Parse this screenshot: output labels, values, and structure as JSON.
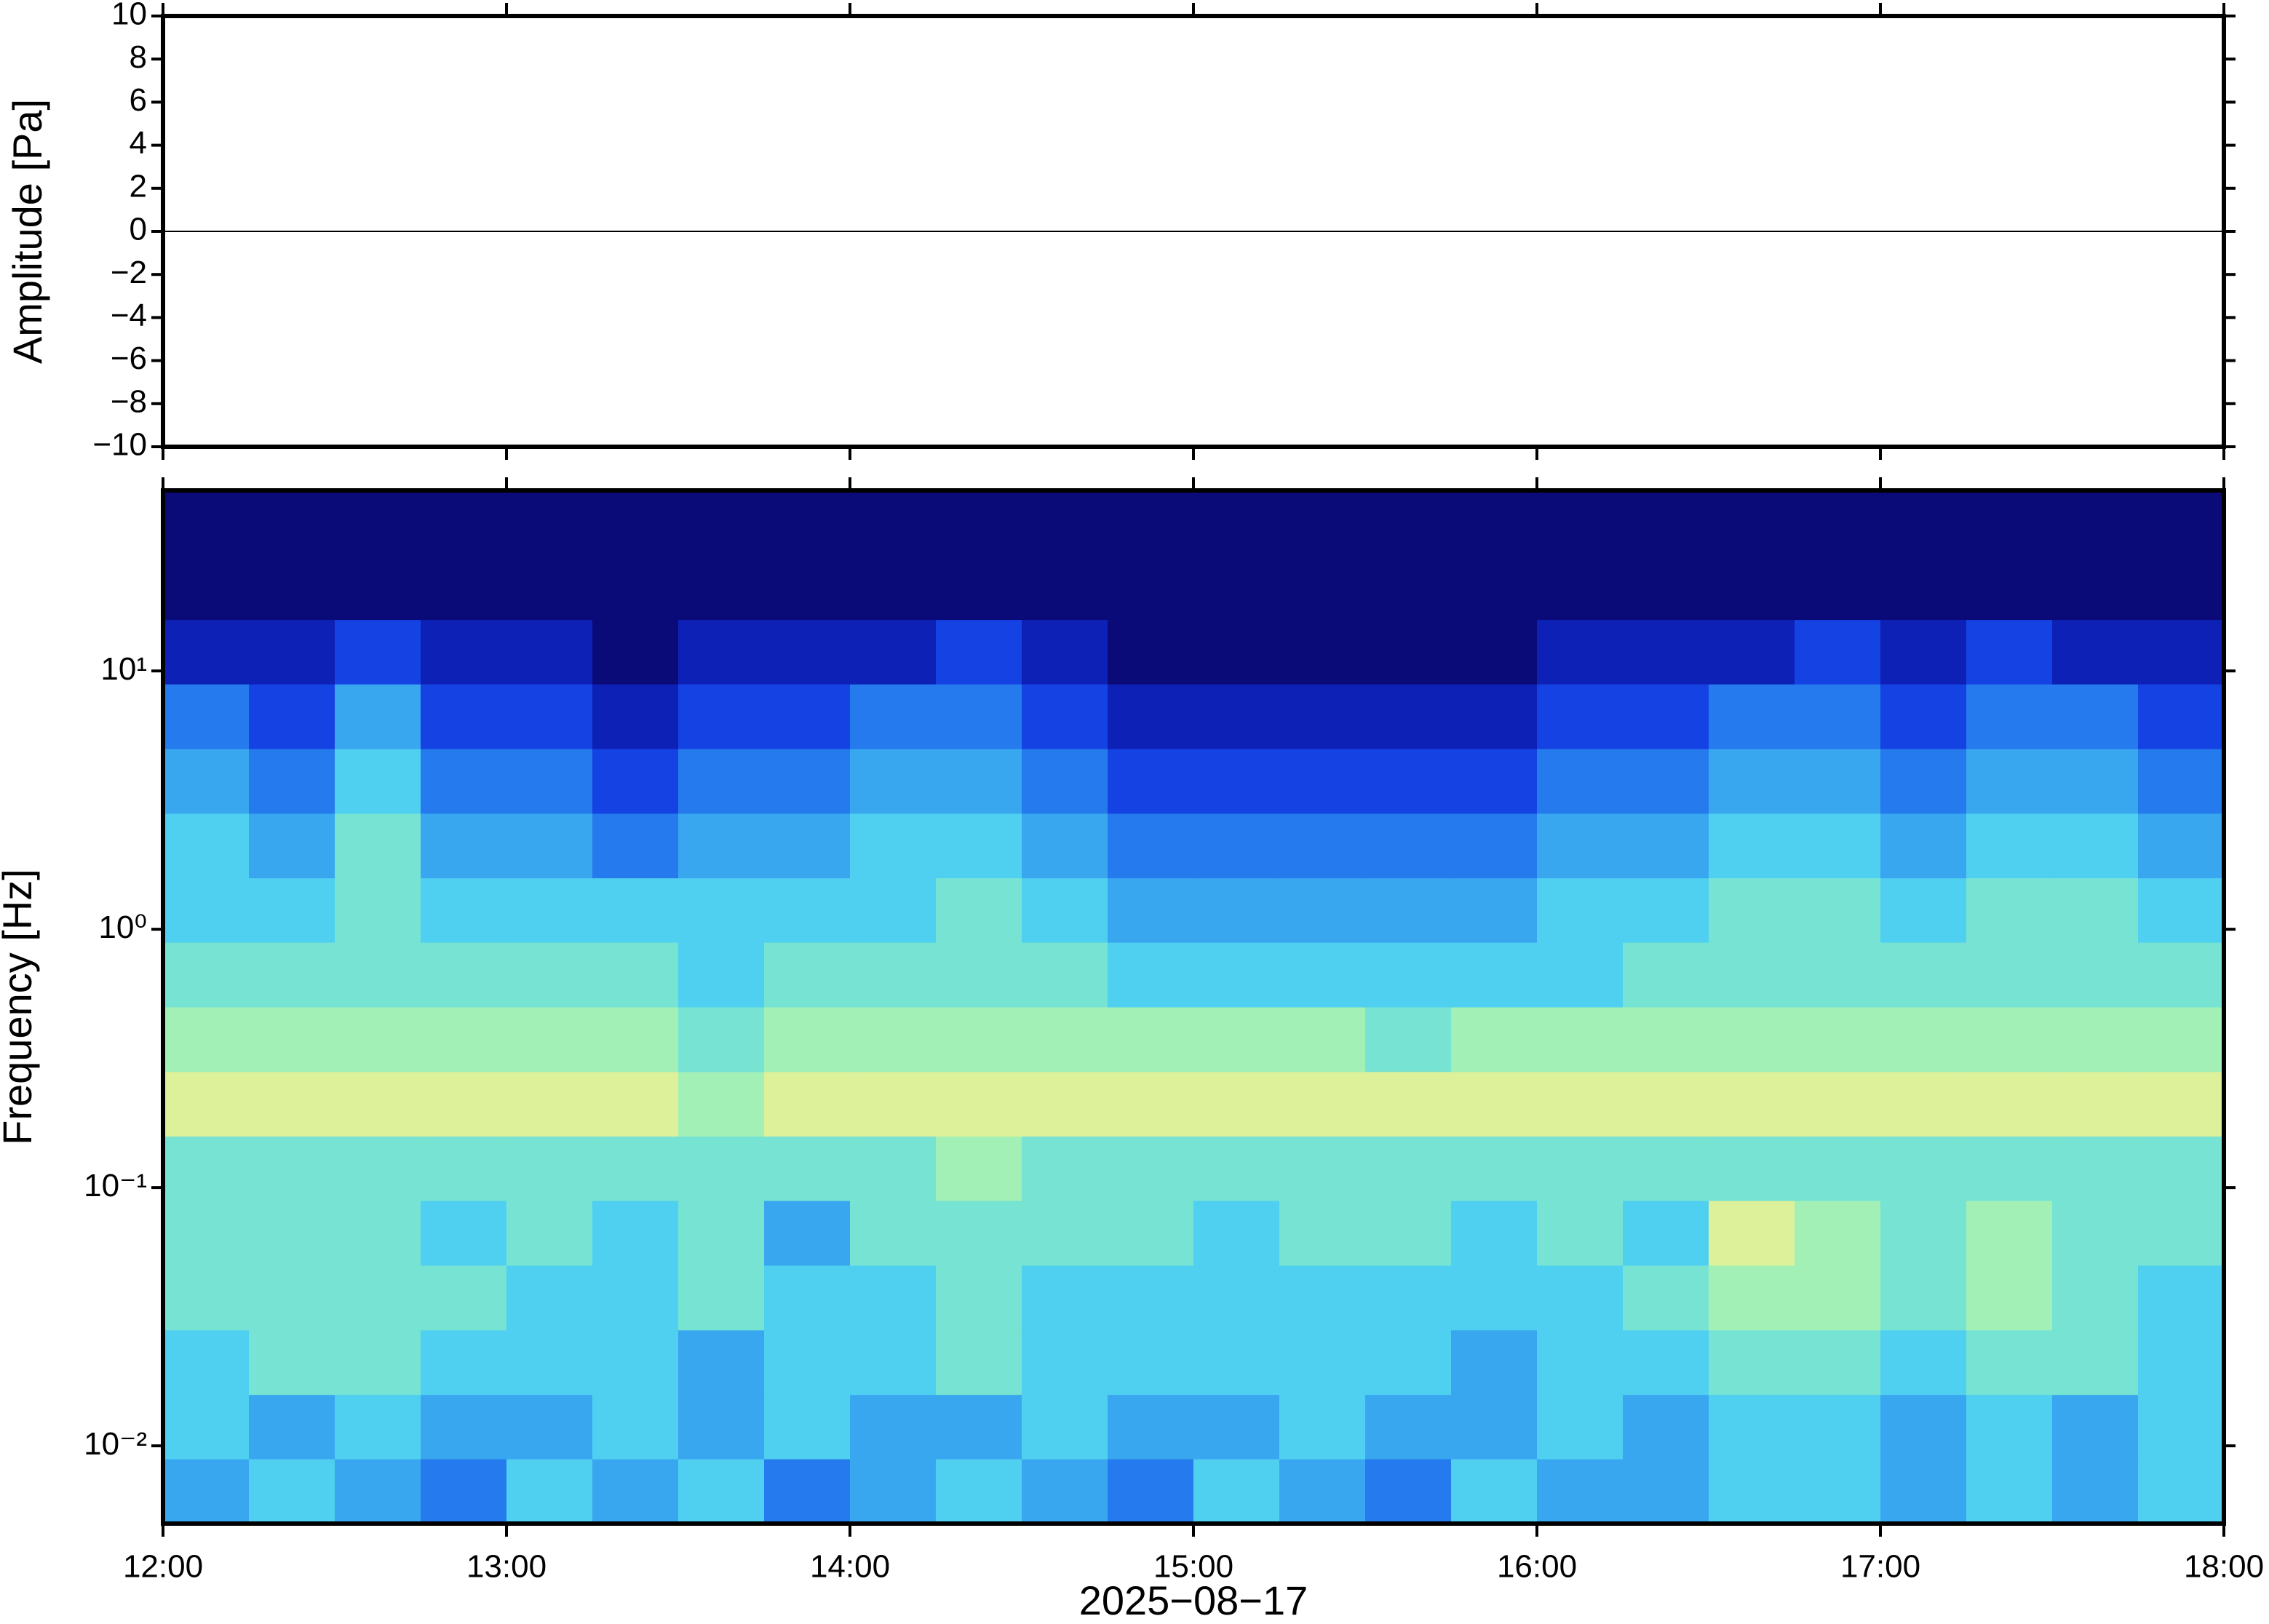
{
  "chart_data": [
    {
      "type": "line",
      "ylabel": "Amplitude [Pa]",
      "xlim": [
        "12:00",
        "18:00"
      ],
      "ylim": [
        -10,
        10
      ],
      "yticks": [
        {
          "value": -10,
          "label": "−10"
        },
        {
          "value": -8,
          "label": "−8"
        },
        {
          "value": -6,
          "label": "−6"
        },
        {
          "value": -4,
          "label": "−4"
        },
        {
          "value": -2,
          "label": "−2"
        },
        0,
        2,
        4,
        6,
        8,
        10
      ],
      "x": [
        "12:00",
        "13:00",
        "14:00",
        "15:00",
        "16:00",
        "17:00",
        "18:00"
      ],
      "series": [
        {
          "color": "#000000",
          "values": [
            0,
            0,
            0,
            0,
            0,
            0,
            0
          ]
        }
      ]
    },
    {
      "type": "heatmap",
      "ylabel": "Frequency [Hz]",
      "xlabel": "2025−08−17",
      "xlim": [
        "12:00",
        "18:00"
      ],
      "xticks": [
        "12:00",
        "13:00",
        "14:00",
        "15:00",
        "16:00",
        "17:00",
        "18:00"
      ],
      "log_y": true,
      "ylim": [
        0.005,
        50
      ],
      "yticks": [
        {
          "value": 0.01,
          "label": "10⁻²"
        },
        {
          "value": 0.1,
          "label": "10⁻¹"
        },
        {
          "value": 1,
          "label": "10⁰"
        },
        {
          "value": 10,
          "label": "10¹"
        }
      ],
      "x_edges": [
        "12:00",
        "12:15",
        "12:30",
        "12:45",
        "13:00",
        "13:15",
        "13:30",
        "13:45",
        "14:00",
        "14:15",
        "14:30",
        "14:45",
        "15:00",
        "15:15",
        "15:30",
        "15:45",
        "16:00",
        "16:15",
        "16:30",
        "16:45",
        "17:00",
        "17:15",
        "17:30",
        "17:45",
        "18:00"
      ],
      "y_edges": [
        0.005,
        0.0089,
        0.0158,
        0.0281,
        0.05,
        0.089,
        0.158,
        0.281,
        0.5,
        0.89,
        1.58,
        2.81,
        5,
        8.9,
        15.8,
        28.1,
        50
      ],
      "zlim": [
        0,
        10
      ],
      "colormap": [
        "#0a0a78",
        "#1030e0",
        "#2a8cf0",
        "#50d0f0",
        "#90f0c0",
        "#f0f090",
        "#f8c080"
      ],
      "z": [
        [
          4,
          5,
          4,
          3,
          5,
          4,
          5,
          3,
          4,
          5,
          4,
          3,
          5,
          4,
          3,
          5,
          4,
          4,
          5,
          5,
          4,
          5,
          4,
          5
        ],
        [
          5,
          4,
          5,
          4,
          4,
          5,
          4,
          5,
          4,
          4,
          5,
          4,
          4,
          5,
          4,
          4,
          5,
          4,
          5,
          5,
          4,
          5,
          4,
          5
        ],
        [
          5,
          6,
          6,
          5,
          5,
          5,
          4,
          5,
          5,
          6,
          5,
          5,
          5,
          5,
          5,
          4,
          5,
          5,
          6,
          6,
          5,
          6,
          6,
          5
        ],
        [
          6,
          6,
          6,
          6,
          5,
          5,
          6,
          5,
          5,
          6,
          5,
          5,
          5,
          5,
          5,
          5,
          5,
          6,
          7,
          7,
          6,
          7,
          6,
          5
        ],
        [
          6,
          6,
          6,
          5,
          6,
          5,
          6,
          4,
          6,
          6,
          6,
          6,
          5,
          6,
          6,
          5,
          6,
          5,
          8,
          7,
          6,
          7,
          6,
          6
        ],
        [
          6,
          6,
          6,
          6,
          6,
          6,
          6,
          6,
          6,
          7,
          6,
          6,
          6,
          6,
          6,
          6,
          6,
          6,
          6,
          6,
          6,
          6,
          6,
          6
        ],
        [
          8,
          8,
          8,
          8,
          8,
          8,
          7,
          8,
          8,
          8,
          8,
          8,
          8,
          8,
          8,
          8,
          8,
          8,
          8,
          8,
          8,
          8,
          8,
          8
        ],
        [
          7,
          7,
          7,
          7,
          7,
          7,
          6,
          7,
          7,
          7,
          7,
          7,
          7,
          7,
          6,
          7,
          7,
          7,
          7,
          7,
          7,
          7,
          7,
          7
        ],
        [
          6,
          6,
          6,
          6,
          6,
          6,
          5,
          6,
          6,
          6,
          6,
          5,
          5,
          5,
          5,
          5,
          5,
          6,
          6,
          6,
          6,
          6,
          6,
          6
        ],
        [
          5,
          5,
          6,
          5,
          5,
          5,
          5,
          5,
          5,
          6,
          5,
          4,
          4,
          4,
          4,
          4,
          5,
          5,
          6,
          6,
          5,
          6,
          6,
          5
        ],
        [
          5,
          4,
          6,
          4,
          4,
          3,
          4,
          4,
          5,
          5,
          4,
          3,
          3,
          3,
          3,
          3,
          4,
          4,
          5,
          5,
          4,
          5,
          5,
          4
        ],
        [
          4,
          3,
          5,
          3,
          3,
          2,
          3,
          3,
          4,
          4,
          3,
          2,
          2,
          2,
          2,
          2,
          3,
          3,
          4,
          4,
          3,
          4,
          4,
          3
        ],
        [
          3,
          2,
          4,
          2,
          2,
          1,
          2,
          2,
          3,
          3,
          2,
          1,
          1,
          1,
          1,
          1,
          2,
          2,
          3,
          3,
          2,
          3,
          3,
          2
        ],
        [
          1,
          1,
          2,
          1,
          1,
          0,
          1,
          1,
          1,
          2,
          1,
          0,
          0,
          0,
          0,
          0,
          1,
          1,
          1,
          2,
          1,
          2,
          1,
          1
        ],
        [
          0,
          0,
          0,
          0,
          0,
          0,
          0,
          0,
          0,
          0,
          0,
          0,
          0,
          0,
          0,
          0,
          0,
          0,
          0,
          0,
          0,
          0,
          0,
          0
        ],
        [
          0,
          0,
          0,
          0,
          0,
          0,
          0,
          0,
          0,
          0,
          0,
          0,
          0,
          0,
          0,
          0,
          0,
          0,
          0,
          0,
          0,
          0,
          0,
          0
        ]
      ]
    }
  ]
}
